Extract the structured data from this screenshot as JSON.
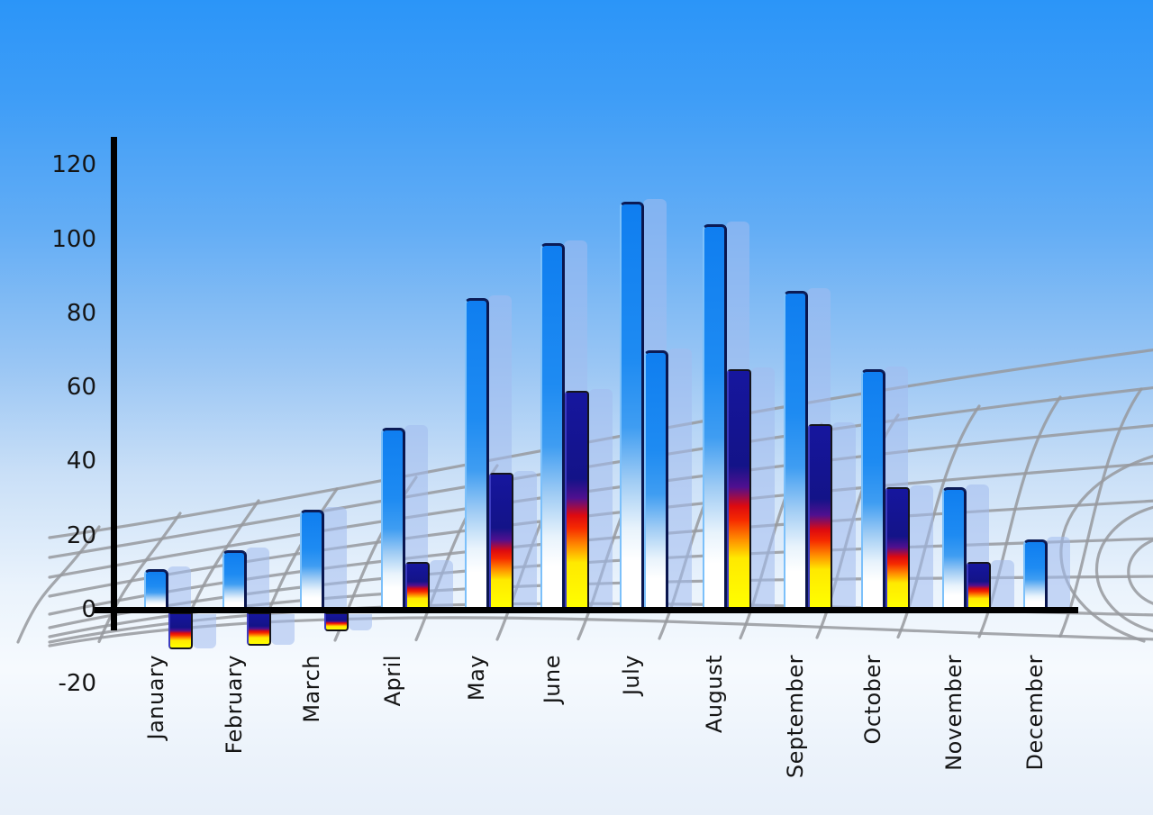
{
  "chart_data": {
    "type": "bar",
    "title": "",
    "xlabel": "",
    "ylabel": "",
    "categories": [
      "January",
      "February",
      "March",
      "April",
      "May",
      "June",
      "July",
      "August",
      "September",
      "October",
      "November",
      "December"
    ],
    "series": [
      {
        "name": "primary-blue-bars",
        "values": [
          11,
          16,
          27,
          49,
          84,
          99,
          110,
          104,
          86,
          65,
          33,
          19
        ]
      },
      {
        "name": "secondary-gradient-bars",
        "values": [
          -10,
          -9,
          -5,
          13,
          37,
          59,
          70,
          65,
          50,
          33,
          13,
          null
        ]
      }
    ],
    "secondary_bar_style": [
      "hot",
      "hot",
      "hot",
      "hot",
      "hot",
      "hot",
      "blue",
      "hot",
      "hot",
      "hot",
      "hot",
      null
    ],
    "y_ticks": [
      120,
      100,
      80,
      60,
      40,
      20,
      0,
      -20
    ],
    "ylim": [
      -20,
      120
    ],
    "legend_position": "none",
    "grid": "decorative curved 3d wireframe mesh",
    "notes": "Each bar casts a translucent pale-blue echo offset right; July's secondary bar is blue-styled; December has no secondary bar."
  },
  "colors": {
    "sky_top": "#2b95f8",
    "sky_bottom": "#e7eff9",
    "bar_blue_top": "#0f7ef0",
    "bar_blue_bottom": "#ffffff",
    "bar_hot_navy": "#16169e",
    "bar_hot_red": "#dd0a10",
    "bar_hot_orange": "#ff8c00",
    "bar_hot_yellow": "#ffff00",
    "bar_echo": "rgba(162,188,238,0.55)",
    "axis": "#000000",
    "grid_line": "#97999d",
    "label_text": "#151515"
  }
}
